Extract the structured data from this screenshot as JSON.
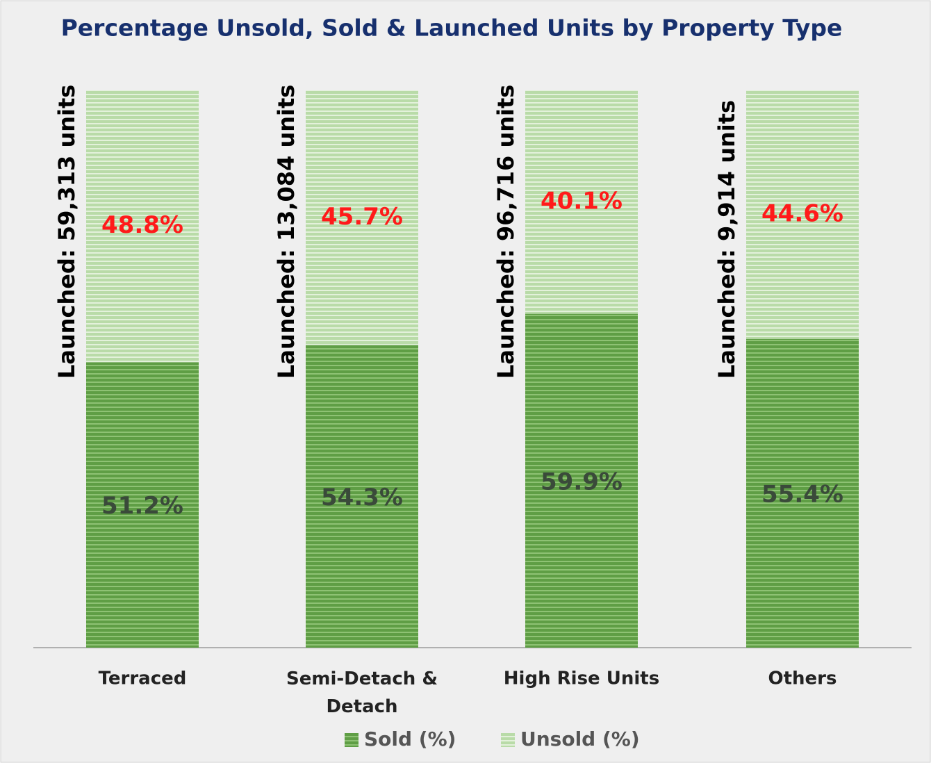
{
  "chart_data": {
    "type": "stacked_bar_100",
    "title": "Percentage Unsold, Sold & Launched Units by Property Type",
    "categories": [
      "Terraced",
      "Semi-Detach & Detach",
      "High Rise Units",
      "Others"
    ],
    "series": [
      {
        "name": "Sold (%)",
        "color": "#5f9e45",
        "values": [
          51.2,
          54.3,
          59.9,
          55.4
        ],
        "value_labels": [
          "51.2%",
          "54.3%",
          "59.9%",
          "55.4%"
        ],
        "label_color": "#3a4a3a"
      },
      {
        "name": "Unsold (%)",
        "color": "#b9dba8",
        "values": [
          48.8,
          45.7,
          40.1,
          44.6
        ],
        "value_labels": [
          "48.8%",
          "45.7%",
          "40.1%",
          "44.6%"
        ],
        "label_color": "#ff1a1a"
      }
    ],
    "annotations": [
      "Launched: 59,313 units",
      "Launched: 13,084 units",
      "Launched: 96,716 units",
      "Launched: 9,914 units"
    ],
    "ylim": [
      0,
      100
    ],
    "legend": "bottom"
  }
}
